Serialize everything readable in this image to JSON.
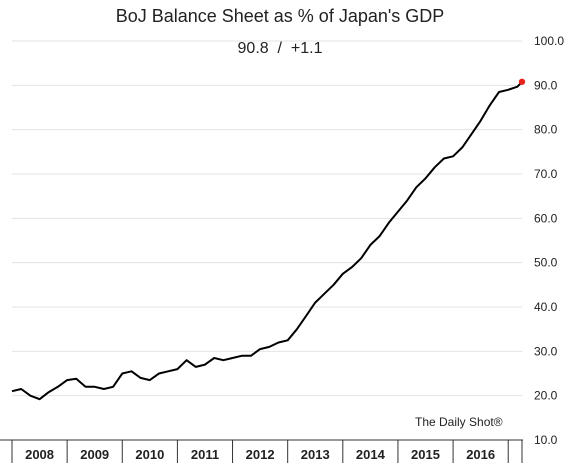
{
  "chart_data": {
    "type": "line",
    "title": "BoJ Balance Sheet as % of Japan's GDP",
    "subtitle": "90.8  /  +1.1",
    "xlabel": "",
    "ylabel": "",
    "ylim": [
      10,
      100
    ],
    "y_ticks": [
      "100.0",
      "90.0",
      "80.0",
      "70.0",
      "60.0",
      "50.0",
      "40.0",
      "30.0",
      "20.0",
      "10.0"
    ],
    "y_axis_side": "right",
    "grid": true,
    "x_range": [
      "2008-01",
      "2017-04"
    ],
    "x_categories": [
      "2008",
      "2009",
      "2010",
      "2011",
      "2012",
      "2013",
      "2014",
      "2015",
      "2016"
    ],
    "annotation": "The Daily Shot®",
    "line_color": "#000000",
    "last_point_color": "#e8231d",
    "series": [
      {
        "x": [
          "2008-01",
          "2008-03",
          "2008-05",
          "2008-07",
          "2008-09",
          "2008-11",
          "2009-01",
          "2009-03",
          "2009-05",
          "2009-07",
          "2009-09",
          "2009-11",
          "2010-01",
          "2010-03",
          "2010-05",
          "2010-07",
          "2010-09",
          "2010-11",
          "2011-01",
          "2011-03",
          "2011-05",
          "2011-07",
          "2011-09",
          "2011-11",
          "2012-01",
          "2012-03",
          "2012-05",
          "2012-07",
          "2012-09",
          "2012-11",
          "2013-01",
          "2013-03",
          "2013-05",
          "2013-07",
          "2013-09",
          "2013-11",
          "2014-01",
          "2014-03",
          "2014-05",
          "2014-07",
          "2014-09",
          "2014-11",
          "2015-01",
          "2015-03",
          "2015-05",
          "2015-07",
          "2015-09",
          "2015-11",
          "2016-01",
          "2016-03",
          "2016-05",
          "2016-07",
          "2016-09",
          "2016-11",
          "2017-01",
          "2017-03",
          "2017-04"
        ],
        "y": [
          21.0,
          21.5,
          20.0,
          19.2,
          20.8,
          22.0,
          23.5,
          23.8,
          22.0,
          22.0,
          21.5,
          22.0,
          25.0,
          25.5,
          24.0,
          23.5,
          25.0,
          25.5,
          26.0,
          28.0,
          26.5,
          27.0,
          28.5,
          28.0,
          28.5,
          29.0,
          29.0,
          30.5,
          31.0,
          32.0,
          32.5,
          35.0,
          38.0,
          41.0,
          43.0,
          45.0,
          47.5,
          49.0,
          51.0,
          54.0,
          56.0,
          59.0,
          61.5,
          64.0,
          67.0,
          69.0,
          71.5,
          73.5,
          74.0,
          76.0,
          79.0,
          82.0,
          85.5,
          88.5,
          89.0,
          89.7,
          90.8
        ]
      }
    ]
  }
}
